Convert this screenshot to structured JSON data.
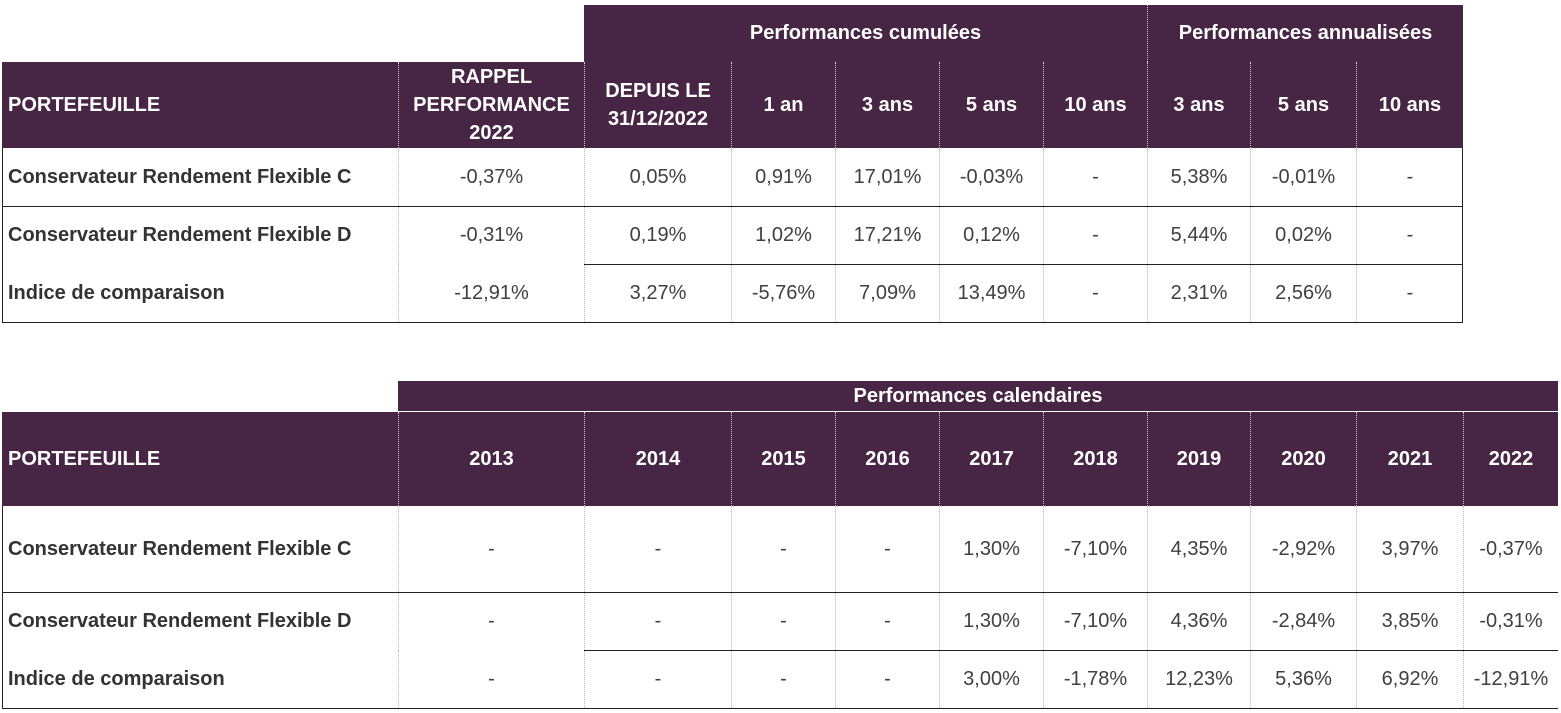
{
  "table1": {
    "group_cumulative": "Performances cumulées",
    "group_annualized": "Performances annualisées",
    "col_portefeuille": "PORTEFEUILLE",
    "col_rappel": "RAPPEL PERFORMANCE 2022",
    "col_depuis": "DEPUIS LE 31/12/2022",
    "col_1an": "1 an",
    "col_3ans": "3 ans",
    "col_5ans": "5 ans",
    "col_10ans": "10 ans",
    "col_ann_3ans": "3 ans",
    "col_ann_5ans": "5 ans",
    "col_ann_10ans": "10 ans",
    "rows": [
      {
        "name": "Conservateur Rendement Flexible C",
        "values": [
          "-0,37%",
          "0,05%",
          "0,91%",
          "17,01%",
          "-0,03%",
          "-",
          "5,38%",
          "-0,01%",
          "-"
        ]
      },
      {
        "name": "Conservateur Rendement Flexible D",
        "values": [
          "-0,31%",
          "0,19%",
          "1,02%",
          "17,21%",
          "0,12%",
          "-",
          "5,44%",
          "0,02%",
          "-"
        ]
      },
      {
        "name": "Indice de comparaison",
        "values": [
          "-12,91%",
          "3,27%",
          "-5,76%",
          "7,09%",
          "13,49%",
          "-",
          "2,31%",
          "2,56%",
          "-"
        ]
      }
    ]
  },
  "table2": {
    "group_calendar": "Performances calendaires",
    "col_portefeuille": "PORTEFEUILLE",
    "years": [
      "2013",
      "2014",
      "2015",
      "2016",
      "2017",
      "2018",
      "2019",
      "2020",
      "2021",
      "2022"
    ],
    "rows": [
      {
        "name": "Conservateur Rendement Flexible C",
        "values": [
          "-",
          "-",
          "-",
          "-",
          "1,30%",
          "-7,10%",
          "4,35%",
          "-2,92%",
          "3,97%",
          "-0,37%"
        ]
      },
      {
        "name": "Conservateur Rendement Flexible D",
        "values": [
          "-",
          "-",
          "-",
          "-",
          "1,30%",
          "-7,10%",
          "4,36%",
          "-2,84%",
          "3,85%",
          "-0,31%"
        ]
      },
      {
        "name": "Indice de comparaison",
        "values": [
          "-",
          "-",
          "-",
          "-",
          "3,00%",
          "-1,78%",
          "12,23%",
          "5,36%",
          "6,92%",
          "-12,91%"
        ]
      }
    ]
  }
}
